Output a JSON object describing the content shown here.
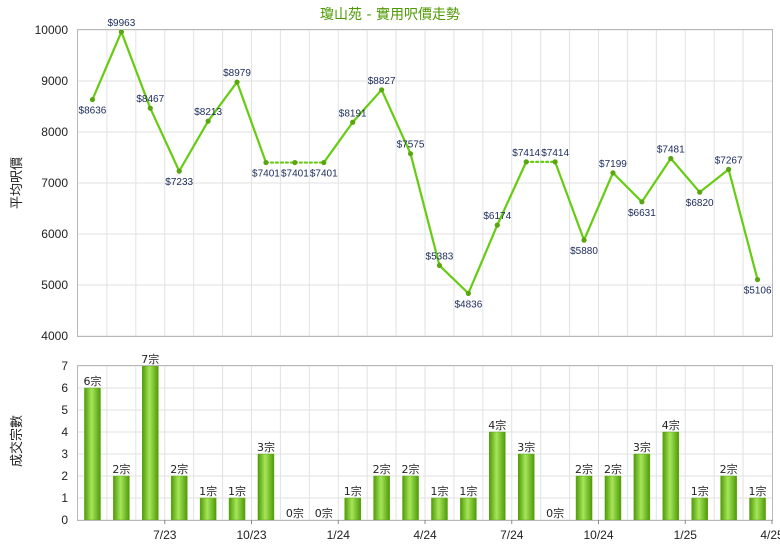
{
  "chart_data": [
    {
      "type": "line",
      "title": "瓊山苑 - 實用呎價走勢",
      "ylabel": "平均呎價",
      "ylim": [
        4000,
        10000
      ],
      "yticks": [
        "4000",
        "5000",
        "6000",
        "7000",
        "8000",
        "9000",
        "10000"
      ],
      "grid": true,
      "color": "#66cc11",
      "series": [
        {
          "values": [
            8636,
            9963,
            8467,
            7233,
            8213,
            8979,
            7401,
            7401,
            7401,
            8191,
            8827,
            7575,
            5383,
            4836,
            6174,
            7414,
            7414,
            5880,
            7199,
            6631,
            7481,
            6820,
            7267,
            5106
          ],
          "labels": [
            "$8636",
            "$9963",
            "$8467",
            "$7233",
            "$8213",
            "$8979",
            "$7401",
            "$7401",
            "$7401",
            "$8191",
            "$8827",
            "$7575",
            "$5383",
            "$4836",
            "$6174",
            "$7414",
            "$7414",
            "$5880",
            "$7199",
            "$6631",
            "$7481",
            "$6820",
            "$7267",
            "$5106"
          ],
          "dotted_segments": [
            6,
            7,
            15
          ]
        }
      ]
    },
    {
      "type": "bar",
      "ylabel": "成交宗數",
      "ylim": [
        0,
        7
      ],
      "yticks": [
        "0",
        "1",
        "2",
        "3",
        "4",
        "5",
        "6",
        "7"
      ],
      "xticks": [
        "7/23",
        "10/23",
        "1/24",
        "4/24",
        "7/24",
        "10/24",
        "1/25",
        "4/25"
      ],
      "grid": true,
      "color": "#77cc22",
      "values": [
        6,
        2,
        7,
        2,
        1,
        1,
        3,
        0,
        0,
        1,
        2,
        2,
        1,
        1,
        4,
        3,
        0,
        2,
        2,
        3,
        4,
        1,
        2,
        1
      ],
      "labels": [
        "6宗",
        "2宗",
        "7宗",
        "2宗",
        "1宗",
        "1宗",
        "3宗",
        "0宗",
        "0宗",
        "1宗",
        "2宗",
        "2宗",
        "1宗",
        "1宗",
        "4宗",
        "3宗",
        "0宗",
        "2宗",
        "2宗",
        "3宗",
        "4宗",
        "1宗",
        "2宗",
        "1宗"
      ]
    }
  ]
}
